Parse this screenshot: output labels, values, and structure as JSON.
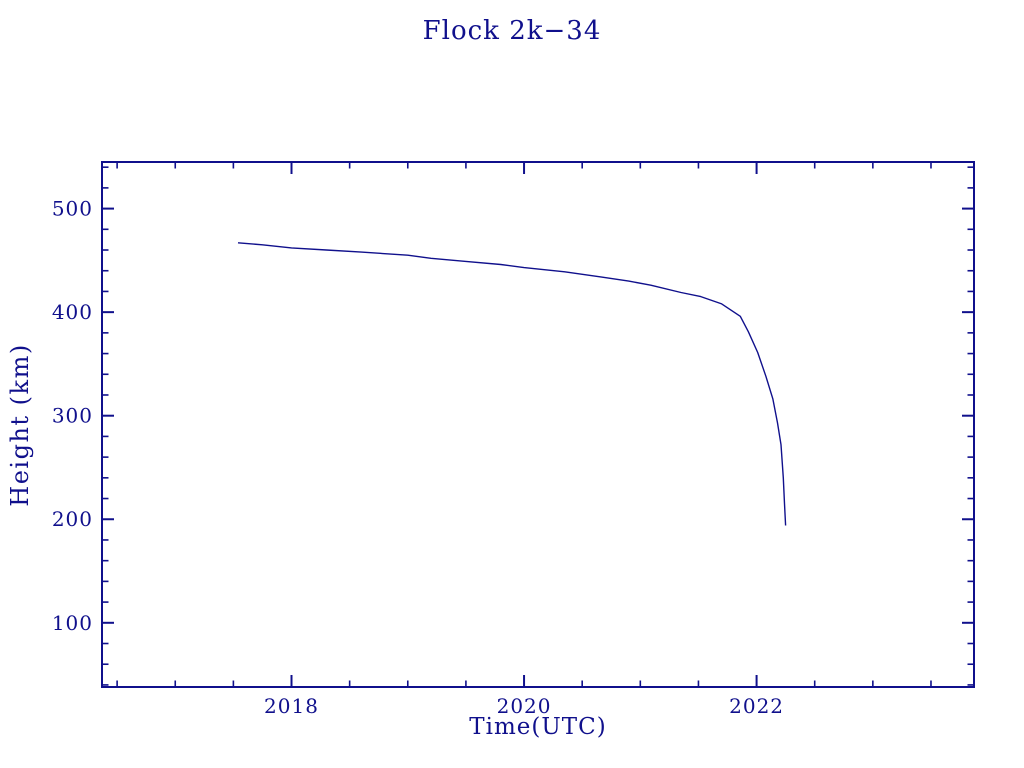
{
  "chart_data": {
    "type": "line",
    "title": "Flock 2k−34",
    "xlabel": "Time(UTC)",
    "ylabel": "Height (km)",
    "xlim": [
      2016.37,
      2023.87
    ],
    "ylim": [
      38,
      545
    ],
    "x_major_ticks": [
      2018,
      2020,
      2022
    ],
    "x_major_tick_labels": [
      "2018",
      "2020",
      "2022"
    ],
    "x_minor_tick_step": 0.5,
    "y_major_ticks": [
      100,
      200,
      300,
      400,
      500
    ],
    "y_major_tick_labels": [
      "100",
      "200",
      "300",
      "400",
      "500"
    ],
    "y_minor_tick_step": 20,
    "grid": false,
    "legend": "none",
    "colors": {
      "background": "#ffffff",
      "axis": "#10108c",
      "text": "#10108c",
      "line": "#10108c"
    },
    "series": [
      {
        "name": "Flock 2k−34 height",
        "x": [
          2017.54,
          2017.75,
          2018.0,
          2018.3,
          2018.6,
          2019.0,
          2019.2,
          2019.5,
          2019.8,
          2020.0,
          2020.35,
          2020.66,
          2020.9,
          2021.09,
          2021.35,
          2021.52,
          2021.7,
          2021.86,
          2021.93,
          2022.01,
          2022.08,
          2022.14,
          2022.18,
          2022.21,
          2022.23,
          2022.24,
          2022.25
        ],
        "y": [
          467,
          465,
          462,
          460,
          458,
          455,
          452,
          449,
          446,
          443,
          439,
          434,
          430,
          426,
          419,
          415,
          408,
          396,
          381,
          361,
          338,
          316,
          293,
          272,
          240,
          215,
          194
        ]
      }
    ]
  }
}
